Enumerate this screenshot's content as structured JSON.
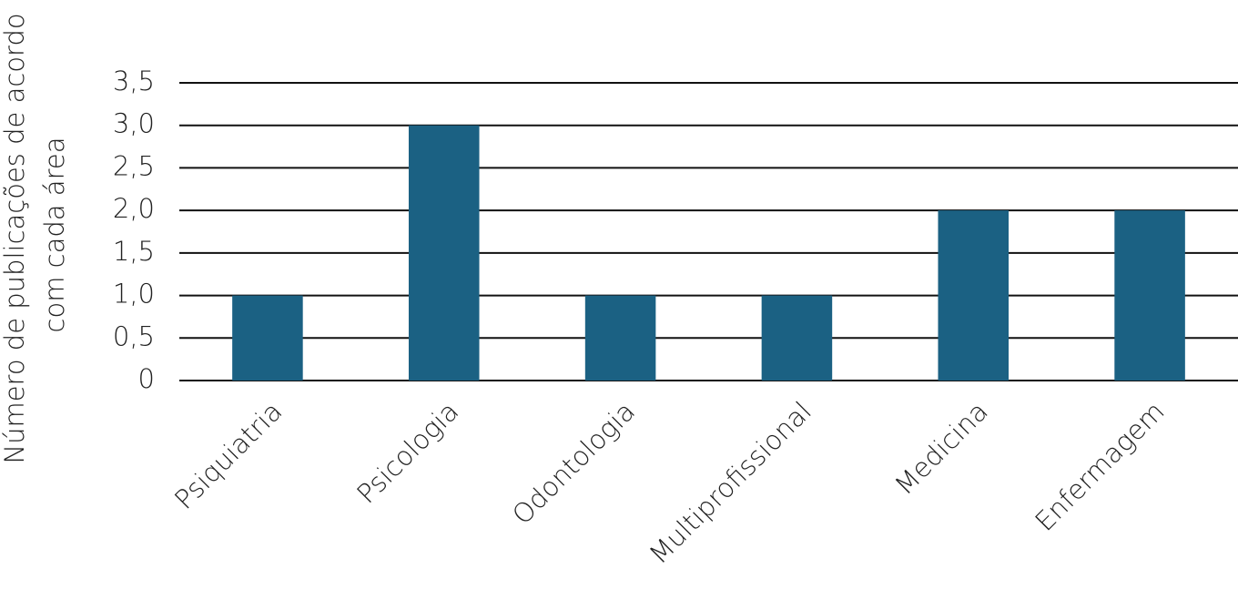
{
  "chart_data": {
    "type": "bar",
    "y_label": [
      "Número de publicações de acordo",
      "com cada área"
    ],
    "categories": [
      "Psiquiatria",
      "Psicologia",
      "Odontologia",
      "Multiprofissional",
      "Medicina",
      "Enfermagem"
    ],
    "values": [
      1,
      3,
      1,
      1,
      2,
      2
    ],
    "color": "#1b6183",
    "ylim": [
      0,
      3.5
    ],
    "yticks": [
      0,
      {
        "value": 0.5,
        "label": "0,5"
      },
      {
        "value": 1,
        "label": "1,0"
      },
      {
        "value": 1.5,
        "label": "1,5"
      },
      {
        "value": 2,
        "label": "2,0"
      },
      {
        "value": 2.5,
        "label": "2,5"
      },
      {
        "value": 3,
        "label": "3,0"
      },
      {
        "value": 3.5,
        "label": "3,5"
      }
    ],
    "grid": true
  }
}
